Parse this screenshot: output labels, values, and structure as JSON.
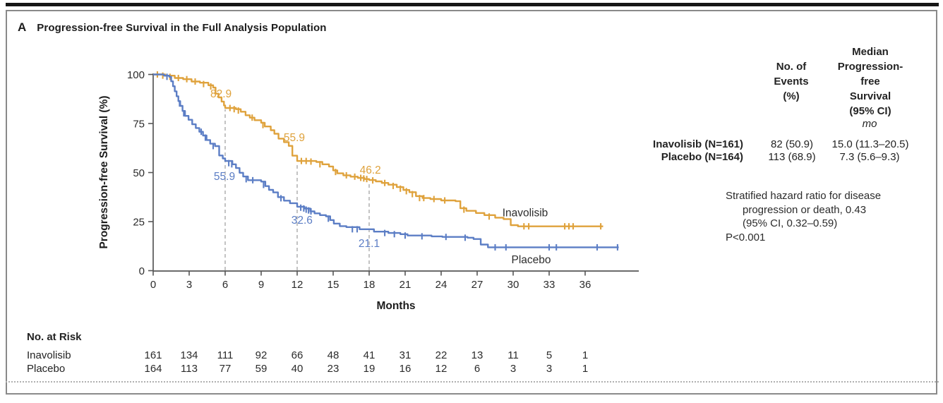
{
  "panel_label": "A",
  "title": "Progression-free Survival in the Full Analysis Population",
  "colors": {
    "inavolisib": "#DFA23C",
    "placebo": "#5C7EC5",
    "axis": "#565656",
    "text": "#2b2b2b",
    "dashed_guide": "#a3a3a3"
  },
  "chart_data": {
    "type": "line",
    "subtype": "kaplan-meier-step",
    "title": "Progression-free Survival in the Full Analysis Population",
    "xlabel": "Months",
    "ylabel": "Progression-free Survival (%)",
    "xlim": [
      0,
      40.5
    ],
    "ylim": [
      0,
      100
    ],
    "x_ticks": [
      0,
      3,
      6,
      9,
      12,
      15,
      18,
      21,
      24,
      27,
      30,
      33,
      36
    ],
    "y_ticks": [
      0,
      25,
      50,
      75,
      100
    ],
    "grid": false,
    "legend_position": "inline-right",
    "dashed_guides": [
      {
        "month": 6,
        "top_pct": 82.9
      },
      {
        "month": 12,
        "top_pct": 55.9
      },
      {
        "month": 18,
        "top_pct": 46.2
      }
    ],
    "series": [
      {
        "name": "Inavolisib",
        "color": "#DFA23C",
        "label": {
          "text": "Inavolisib",
          "m": 31.0,
          "p": 29.5
        },
        "annotations": [
          {
            "text": "82.9",
            "m": 5.65,
            "p": 90.1
          },
          {
            "text": "55.9",
            "m": 11.76,
            "p": 67.8
          },
          {
            "text": "46.2",
            "m": 18.1,
            "p": 51.3
          }
        ],
        "steps": [
          [
            0,
            100
          ],
          [
            1.0,
            99.4
          ],
          [
            1.8,
            98.2
          ],
          [
            2.5,
            97.6
          ],
          [
            3.2,
            96.4
          ],
          [
            3.9,
            95.8
          ],
          [
            4.6,
            94.5
          ],
          [
            5.0,
            93.3
          ],
          [
            5.2,
            90.2
          ],
          [
            5.45,
            88.3
          ],
          [
            5.7,
            86.2
          ],
          [
            5.9,
            84.2
          ],
          [
            6.0,
            82.9
          ],
          [
            6.9,
            82.3
          ],
          [
            7.3,
            81.0
          ],
          [
            7.7,
            79.2
          ],
          [
            8.05,
            78.0
          ],
          [
            8.45,
            76.7
          ],
          [
            9.0,
            75.4
          ],
          [
            9.3,
            73.5
          ],
          [
            9.8,
            71.6
          ],
          [
            10.1,
            69.8
          ],
          [
            10.45,
            67.3
          ],
          [
            10.9,
            65.5
          ],
          [
            11.3,
            63.6
          ],
          [
            11.6,
            58.6
          ],
          [
            12.0,
            55.9
          ],
          [
            13.6,
            55.4
          ],
          [
            14.1,
            54.2
          ],
          [
            14.65,
            53.1
          ],
          [
            15.0,
            51.1
          ],
          [
            15.35,
            49.6
          ],
          [
            15.85,
            48.6
          ],
          [
            16.45,
            47.9
          ],
          [
            17.05,
            47.3
          ],
          [
            17.6,
            46.7
          ],
          [
            18.0,
            46.2
          ],
          [
            18.55,
            45.5
          ],
          [
            19.05,
            44.7
          ],
          [
            19.6,
            43.8
          ],
          [
            20.3,
            42.6
          ],
          [
            20.85,
            41.1
          ],
          [
            21.35,
            40.0
          ],
          [
            21.9,
            38.0
          ],
          [
            22.45,
            37.0
          ],
          [
            23.1,
            36.5
          ],
          [
            24.0,
            35.8
          ],
          [
            25.2,
            35.4
          ],
          [
            25.6,
            31.8
          ],
          [
            26.1,
            30.5
          ],
          [
            26.9,
            29.4
          ],
          [
            27.6,
            28.3
          ],
          [
            28.5,
            27.0
          ],
          [
            29.2,
            26.3
          ],
          [
            29.8,
            23.2
          ],
          [
            30.4,
            22.6
          ],
          [
            37.5,
            22.6
          ]
        ],
        "censors": [
          [
            0.35,
            100
          ],
          [
            0.8,
            99.4
          ],
          [
            1.4,
            98.8
          ],
          [
            2.1,
            98.2
          ],
          [
            2.8,
            97.6
          ],
          [
            3.5,
            96.4
          ],
          [
            4.2,
            95.1
          ],
          [
            4.8,
            93.9
          ],
          [
            6.4,
            82.9
          ],
          [
            6.75,
            82.3
          ],
          [
            7.1,
            81.6
          ],
          [
            8.25,
            78.0
          ],
          [
            9.15,
            74.2
          ],
          [
            12.35,
            55.9
          ],
          [
            12.75,
            55.9
          ],
          [
            13.15,
            55.6
          ],
          [
            13.9,
            54.2
          ],
          [
            15.2,
            50.3
          ],
          [
            16.1,
            48.6
          ],
          [
            16.8,
            47.9
          ],
          [
            17.3,
            47.3
          ],
          [
            17.55,
            47.0
          ],
          [
            17.8,
            46.7
          ],
          [
            18.3,
            46.0
          ],
          [
            19.3,
            44.7
          ],
          [
            20.0,
            43.2
          ],
          [
            20.6,
            41.8
          ],
          [
            21.1,
            40.5
          ],
          [
            21.6,
            39.0
          ],
          [
            22.2,
            37.0
          ],
          [
            22.55,
            37.0
          ],
          [
            23.4,
            36.5
          ],
          [
            24.3,
            35.8
          ],
          [
            25.9,
            31.1
          ],
          [
            28.0,
            27.6
          ],
          [
            30.9,
            22.6
          ],
          [
            31.3,
            22.6
          ],
          [
            34.3,
            22.6
          ],
          [
            34.65,
            22.6
          ],
          [
            35.0,
            22.6
          ],
          [
            37.3,
            22.6
          ]
        ]
      },
      {
        "name": "Placebo",
        "color": "#5C7EC5",
        "label": {
          "text": "Placebo",
          "m": 31.5,
          "p": 5.5
        },
        "annotations": [
          {
            "text": "55.9",
            "m": 5.94,
            "p": 48.0
          },
          {
            "text": "32.6",
            "m": 12.4,
            "p": 25.7
          },
          {
            "text": "21.1",
            "m": 18.0,
            "p": 13.8
          }
        ],
        "steps": [
          [
            0,
            100
          ],
          [
            0.9,
            99.4
          ],
          [
            1.35,
            98.8
          ],
          [
            1.5,
            96.5
          ],
          [
            1.65,
            94.0
          ],
          [
            1.8,
            91.4
          ],
          [
            1.95,
            88.9
          ],
          [
            2.1,
            86.4
          ],
          [
            2.25,
            84.0
          ],
          [
            2.45,
            81.4
          ],
          [
            2.65,
            78.9
          ],
          [
            2.95,
            76.9
          ],
          [
            3.25,
            74.6
          ],
          [
            3.55,
            72.7
          ],
          [
            3.85,
            70.8
          ],
          [
            4.15,
            68.9
          ],
          [
            4.45,
            66.6
          ],
          [
            4.75,
            64.7
          ],
          [
            5.15,
            63.5
          ],
          [
            5.5,
            58.7
          ],
          [
            5.8,
            57.2
          ],
          [
            6.0,
            55.9
          ],
          [
            6.6,
            54.2
          ],
          [
            6.9,
            52.3
          ],
          [
            7.2,
            49.9
          ],
          [
            7.5,
            48.0
          ],
          [
            7.9,
            46.1
          ],
          [
            9.0,
            45.4
          ],
          [
            9.35,
            43.1
          ],
          [
            9.65,
            41.2
          ],
          [
            10.0,
            39.9
          ],
          [
            10.4,
            37.5
          ],
          [
            10.9,
            35.7
          ],
          [
            11.4,
            34.4
          ],
          [
            12.0,
            32.6
          ],
          [
            12.6,
            31.7
          ],
          [
            13.1,
            30.2
          ],
          [
            13.45,
            29.2
          ],
          [
            13.9,
            28.3
          ],
          [
            14.4,
            27.7
          ],
          [
            14.75,
            25.8
          ],
          [
            15.05,
            24.0
          ],
          [
            15.55,
            22.7
          ],
          [
            16.1,
            22.2
          ],
          [
            17.2,
            21.1
          ],
          [
            18.4,
            19.9
          ],
          [
            19.6,
            19.2
          ],
          [
            20.6,
            18.6
          ],
          [
            21.2,
            17.9
          ],
          [
            23.2,
            17.5
          ],
          [
            24.1,
            17.2
          ],
          [
            26.2,
            16.8
          ],
          [
            26.7,
            16.1
          ],
          [
            27.3,
            13.3
          ],
          [
            27.9,
            11.9
          ],
          [
            38.8,
            11.9
          ]
        ],
        "censors": [
          [
            1.15,
            98.8
          ],
          [
            2.2,
            85.2
          ],
          [
            2.55,
            80.2
          ],
          [
            4.0,
            70.8
          ],
          [
            4.35,
            67.8
          ],
          [
            5.0,
            63.5
          ],
          [
            6.3,
            54.8
          ],
          [
            6.55,
            54.2
          ],
          [
            7.75,
            46.6
          ],
          [
            8.3,
            46.1
          ],
          [
            9.2,
            43.7
          ],
          [
            10.65,
            36.9
          ],
          [
            12.3,
            32.1
          ],
          [
            12.55,
            31.7
          ],
          [
            12.75,
            31.1
          ],
          [
            12.95,
            30.7
          ],
          [
            13.15,
            30.2
          ],
          [
            14.6,
            26.5
          ],
          [
            16.6,
            21.1
          ],
          [
            17.0,
            21.1
          ],
          [
            19.3,
            19.2
          ],
          [
            20.1,
            18.6
          ],
          [
            21.0,
            17.9
          ],
          [
            22.4,
            17.5
          ],
          [
            24.4,
            17.2
          ],
          [
            26.0,
            16.8
          ],
          [
            28.5,
            11.9
          ],
          [
            29.4,
            11.9
          ],
          [
            33.0,
            11.9
          ],
          [
            33.6,
            11.9
          ],
          [
            37.0,
            11.9
          ],
          [
            38.7,
            11.9
          ]
        ]
      }
    ]
  },
  "stats": {
    "col_events_header": "No. of\nEvents\n(%)",
    "col_median_header": "Median\nProgression-free\nSurvival\n(95% CI)",
    "unit": "mo",
    "rows": [
      {
        "group": "Inavolisib (N=161)",
        "events": "82 (50.9)",
        "median": "15.0 (11.3–20.5)"
      },
      {
        "group": "Placebo (N=164)",
        "events": "113 (68.9)",
        "median": "7.3 (5.6–9.3)"
      }
    ],
    "hazard_lines": [
      "Stratified hazard ratio for disease",
      "progression or death, 0.43",
      "(95% CI, 0.32–0.59)"
    ],
    "p_value": "P<0.001"
  },
  "risk_table": {
    "header": "No. at Risk",
    "rows": [
      {
        "label": "Inavolisib",
        "values": [
          161,
          134,
          111,
          92,
          66,
          48,
          41,
          31,
          22,
          13,
          11,
          5,
          1
        ]
      },
      {
        "label": "Placebo",
        "values": [
          164,
          113,
          77,
          59,
          40,
          23,
          19,
          16,
          12,
          6,
          3,
          3,
          1
        ]
      }
    ]
  }
}
